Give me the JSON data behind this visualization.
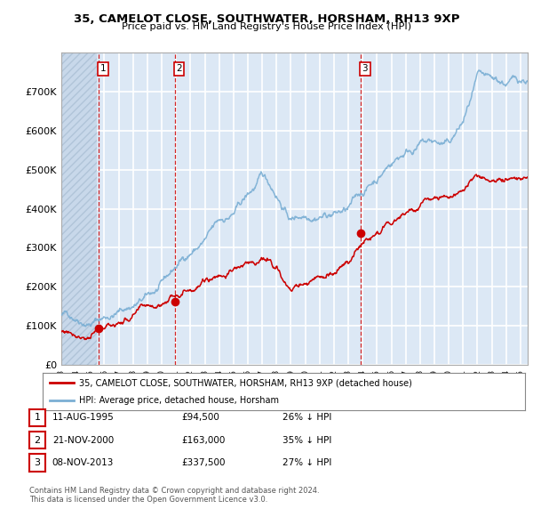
{
  "title": "35, CAMELOT CLOSE, SOUTHWATER, HORSHAM, RH13 9XP",
  "subtitle": "Price paid vs. HM Land Registry's House Price Index (HPI)",
  "ylim": [
    0,
    800000
  ],
  "yticks": [
    0,
    100000,
    200000,
    300000,
    400000,
    500000,
    600000,
    700000
  ],
  "ytick_labels": [
    "£0",
    "£100K",
    "£200K",
    "£300K",
    "£400K",
    "£500K",
    "£600K",
    "£700K"
  ],
  "xlim_start": 1993.0,
  "xlim_end": 2025.5,
  "sales": [
    {
      "date": 1995.617,
      "price": 94500,
      "label": "1"
    },
    {
      "date": 2000.896,
      "price": 163000,
      "label": "2"
    },
    {
      "date": 2013.855,
      "price": 337500,
      "label": "3"
    }
  ],
  "sale_dates_info": [
    {
      "num": "1",
      "date_str": "11-AUG-1995",
      "price_str": "£94,500",
      "pct": "26% ↓ HPI"
    },
    {
      "num": "2",
      "date_str": "21-NOV-2000",
      "price_str": "£163,000",
      "pct": "35% ↓ HPI"
    },
    {
      "num": "3",
      "date_str": "08-NOV-2013",
      "price_str": "£337,500",
      "pct": "27% ↓ HPI"
    }
  ],
  "legend_line1": "35, CAMELOT CLOSE, SOUTHWATER, HORSHAM, RH13 9XP (detached house)",
  "legend_line2": "HPI: Average price, detached house, Horsham",
  "footnote1": "Contains HM Land Registry data © Crown copyright and database right 2024.",
  "footnote2": "This data is licensed under the Open Government Licence v3.0.",
  "hpi_color": "#7bafd4",
  "price_color": "#cc0000",
  "bg_color": "#dce8f5",
  "grid_color": "#ffffff",
  "hatch_bg": "#c8d8ea"
}
